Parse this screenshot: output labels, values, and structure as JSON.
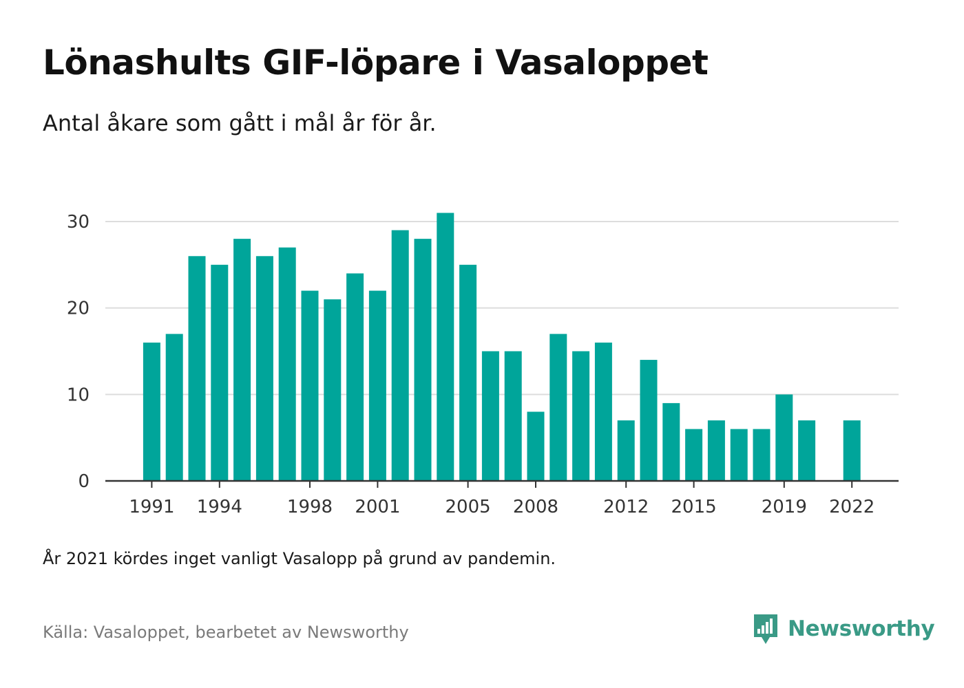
{
  "title": "Lönashults GIF-löpare i Vasaloppet",
  "subtitle": "Antal åkare som gått i mål år för år.",
  "note": "År 2021 kördes inget vanligt Vasalopp på grund av pandemin.",
  "source": "Källa: Vasaloppet, bearbetet av Newsworthy",
  "brand": {
    "name": "Newsworthy",
    "icon": "newsworthy-logo-icon"
  },
  "colors": {
    "bar": "#00a59a",
    "brand": "#3a9a86",
    "grid": "#dddddd",
    "axis": "#333333"
  },
  "chart_data": {
    "type": "bar",
    "title": "Lönashults GIF-löpare i Vasaloppet",
    "subtitle": "Antal åkare som gått i mål år för år.",
    "xlabel": "",
    "ylabel": "",
    "categories": [
      1991,
      1992,
      1993,
      1994,
      1995,
      1996,
      1997,
      1998,
      1999,
      2000,
      2001,
      2002,
      2003,
      2004,
      2005,
      2006,
      2007,
      2008,
      2009,
      2010,
      2011,
      2012,
      2013,
      2014,
      2015,
      2016,
      2017,
      2018,
      2019,
      2020,
      2021,
      2022
    ],
    "values": [
      16,
      17,
      26,
      25,
      28,
      26,
      27,
      22,
      21,
      24,
      22,
      29,
      28,
      31,
      25,
      15,
      15,
      8,
      17,
      15,
      16,
      7,
      14,
      9,
      6,
      7,
      6,
      6,
      10,
      7,
      null,
      7
    ],
    "x_tick_labels": [
      "1991",
      "1994",
      "1998",
      "2001",
      "2005",
      "2008",
      "2012",
      "2015",
      "2019",
      "2022"
    ],
    "y_ticks": [
      0,
      10,
      20,
      30
    ],
    "ylim": [
      0,
      31
    ],
    "grid": true,
    "legend": "none"
  }
}
